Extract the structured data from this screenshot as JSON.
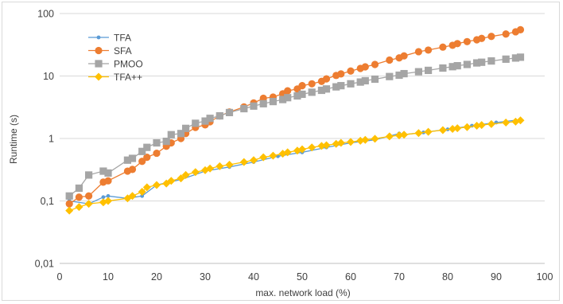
{
  "chart_data": {
    "type": "line",
    "title": "",
    "xlabel": "max.  network load (%)",
    "ylabel": "Runtime (s)",
    "xlim": [
      0,
      100
    ],
    "ylim": [
      0.01,
      100
    ],
    "yscale": "log",
    "x_ticks": [
      0,
      10,
      20,
      30,
      40,
      50,
      60,
      70,
      80,
      90,
      100
    ],
    "x_tick_labels": [
      "0",
      "10",
      "20",
      "30",
      "40",
      "50",
      "60",
      "70",
      "80",
      "90",
      "100"
    ],
    "y_ticks": [
      0.01,
      0.1,
      1,
      10,
      100
    ],
    "y_tick_labels": [
      "0,01",
      "0,1",
      "1",
      "10",
      "100"
    ],
    "grid": "horizontal major",
    "legend_position": "top-left",
    "series": [
      {
        "name": "TFA",
        "color": "#5b9bd5",
        "marker": "circle-small",
        "x": [
          2,
          6,
          9,
          10,
          14,
          17,
          20,
          25,
          30,
          35,
          40,
          45,
          50,
          55,
          60,
          65,
          70,
          71,
          75,
          80,
          85,
          90,
          95
        ],
        "y": [
          0.1,
          0.09,
          0.115,
          0.12,
          0.11,
          0.12,
          0.18,
          0.22,
          0.3,
          0.35,
          0.42,
          0.52,
          0.6,
          0.72,
          0.85,
          0.95,
          1.2,
          1.15,
          1.25,
          1.4,
          1.6,
          1.8,
          2.0
        ]
      },
      {
        "name": "SFA",
        "color": "#ed7d31",
        "marker": "circle",
        "x": [
          2,
          4,
          6,
          9,
          10,
          14,
          15,
          17,
          18,
          20,
          22,
          23,
          25,
          26,
          28,
          30,
          31,
          33,
          35,
          38,
          40,
          42,
          44,
          46,
          47,
          49,
          50,
          52,
          54,
          55,
          57,
          58,
          60,
          62,
          63,
          65,
          68,
          70,
          71,
          74,
          76,
          79,
          81,
          82,
          84,
          86,
          87,
          89,
          92,
          94,
          95
        ],
        "y": [
          0.09,
          0.115,
          0.12,
          0.2,
          0.21,
          0.3,
          0.32,
          0.43,
          0.5,
          0.58,
          0.75,
          0.85,
          1.0,
          1.2,
          1.5,
          1.65,
          1.85,
          2.3,
          2.65,
          3.2,
          3.7,
          4.4,
          4.6,
          5.2,
          5.8,
          6.2,
          7.0,
          7.5,
          8.2,
          9.0,
          10.2,
          10.8,
          12.0,
          13.2,
          14.0,
          15.3,
          18.0,
          19.5,
          21.0,
          24.5,
          26.0,
          29.0,
          31.0,
          33.0,
          35.5,
          38.0,
          40.0,
          43.0,
          47.0,
          51.0,
          55.0
        ]
      },
      {
        "name": "PMOO",
        "color": "#a5a5a5",
        "marker": "square",
        "x": [
          2,
          4,
          6,
          9,
          10,
          14,
          15,
          17,
          18,
          20,
          22,
          23,
          25,
          26,
          28,
          30,
          31,
          33,
          35,
          38,
          40,
          42,
          44,
          46,
          47,
          49,
          50,
          52,
          54,
          55,
          57,
          58,
          60,
          62,
          63,
          65,
          68,
          70,
          71,
          74,
          76,
          79,
          81,
          82,
          84,
          86,
          87,
          89,
          92,
          94,
          95
        ],
        "y": [
          0.12,
          0.16,
          0.26,
          0.3,
          0.28,
          0.45,
          0.48,
          0.62,
          0.72,
          0.85,
          0.9,
          1.15,
          1.2,
          1.45,
          1.75,
          1.9,
          2.1,
          2.3,
          2.6,
          3.0,
          3.3,
          3.6,
          3.9,
          4.2,
          4.5,
          4.8,
          5.1,
          5.5,
          5.9,
          6.2,
          6.7,
          7.0,
          7.5,
          8.0,
          8.4,
          8.9,
          9.8,
          10.3,
          10.9,
          11.7,
          12.3,
          13.4,
          14.1,
          14.6,
          15.3,
          16.2,
          16.6,
          17.4,
          18.6,
          19.4,
          20.0
        ]
      },
      {
        "name": "TFA++",
        "color": "#ffc000",
        "marker": "diamond",
        "x": [
          2,
          4,
          6,
          9,
          10,
          14,
          15,
          17,
          18,
          20,
          22,
          23,
          25,
          26,
          28,
          30,
          31,
          33,
          35,
          38,
          40,
          42,
          44,
          46,
          47,
          49,
          50,
          52,
          54,
          55,
          57,
          58,
          60,
          62,
          63,
          65,
          68,
          70,
          71,
          74,
          76,
          79,
          81,
          82,
          84,
          86,
          87,
          89,
          92,
          94,
          95
        ],
        "y": [
          0.07,
          0.08,
          0.09,
          0.095,
          0.1,
          0.11,
          0.12,
          0.14,
          0.165,
          0.18,
          0.19,
          0.21,
          0.23,
          0.26,
          0.29,
          0.31,
          0.33,
          0.36,
          0.38,
          0.42,
          0.45,
          0.5,
          0.53,
          0.57,
          0.6,
          0.64,
          0.67,
          0.72,
          0.76,
          0.78,
          0.82,
          0.85,
          0.88,
          0.92,
          0.95,
          0.99,
          1.08,
          1.12,
          1.15,
          1.22,
          1.28,
          1.36,
          1.42,
          1.46,
          1.52,
          1.6,
          1.64,
          1.7,
          1.8,
          1.86,
          1.95
        ]
      }
    ]
  }
}
